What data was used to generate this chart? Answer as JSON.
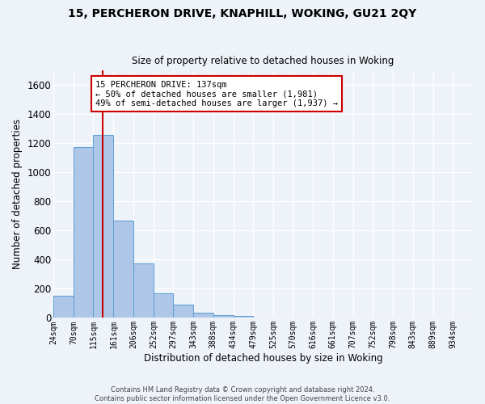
{
  "title1": "15, PERCHERON DRIVE, KNAPHILL, WOKING, GU21 2QY",
  "title2": "Size of property relative to detached houses in Woking",
  "xlabel": "Distribution of detached houses by size in Woking",
  "ylabel": "Number of detached properties",
  "bar_color": "#aec6e8",
  "bar_edge_color": "#5a9fd4",
  "bin_labels": [
    "24sqm",
    "70sqm",
    "115sqm",
    "161sqm",
    "206sqm",
    "252sqm",
    "297sqm",
    "343sqm",
    "388sqm",
    "434sqm",
    "479sqm",
    "525sqm",
    "570sqm",
    "616sqm",
    "661sqm",
    "707sqm",
    "752sqm",
    "798sqm",
    "843sqm",
    "889sqm",
    "934sqm"
  ],
  "bar_values": [
    150,
    1175,
    1260,
    670,
    375,
    170,
    90,
    35,
    20,
    12,
    0,
    0,
    0,
    0,
    0,
    0,
    0,
    0,
    0,
    0
  ],
  "ylim": [
    0,
    1700
  ],
  "yticks": [
    0,
    200,
    400,
    600,
    800,
    1000,
    1200,
    1400,
    1600
  ],
  "bin_edges": [
    24,
    70,
    115,
    161,
    206,
    252,
    297,
    343,
    388,
    434,
    479,
    525,
    570,
    616,
    661,
    707,
    752,
    798,
    843,
    889,
    934
  ],
  "n_bins": 20,
  "annotation_text": "15 PERCHERON DRIVE: 137sqm\n← 50% of detached houses are smaller (1,981)\n49% of semi-detached houses are larger (1,937) →",
  "annotation_box_color": "#ffffff",
  "annotation_box_edge": "#cc0000",
  "footnote": "Contains HM Land Registry data © Crown copyright and database right 2024.\nContains public sector information licensed under the Open Government Licence v3.0.",
  "vline_color": "#cc0000",
  "vline_x_bin": 2,
  "background_color": "#eef2f9",
  "grid_color": "#ffffff"
}
